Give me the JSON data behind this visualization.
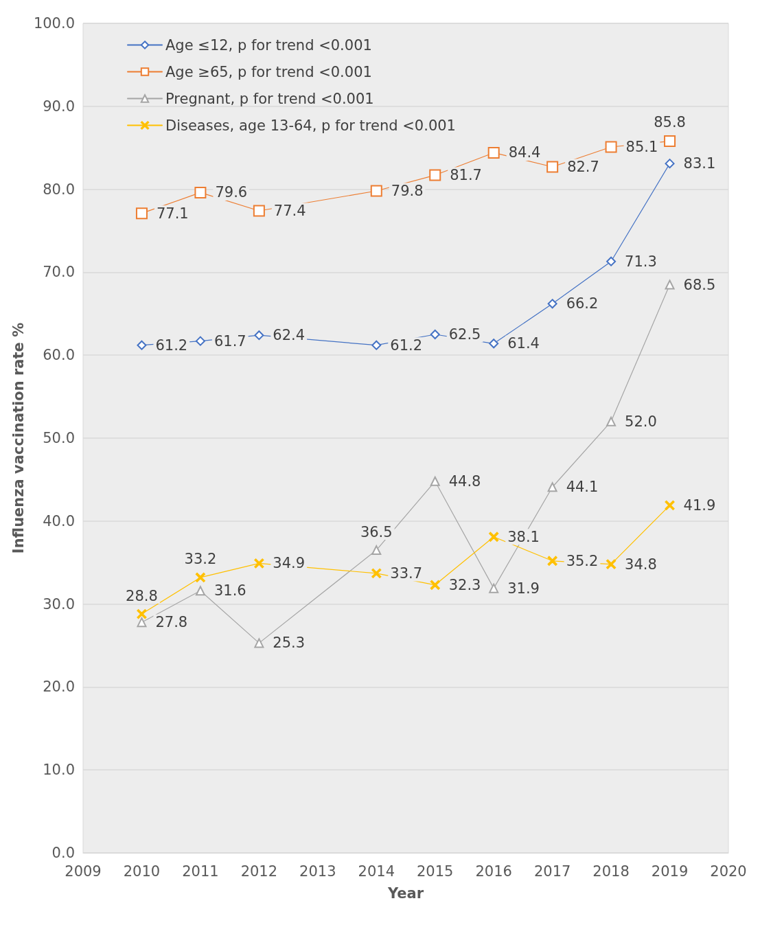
{
  "chart_data": {
    "type": "line",
    "xlabel": "Year",
    "ylabel": "Influenza vaccination rate %",
    "x": [
      2010,
      2011,
      2012,
      2014,
      2015,
      2016,
      2017,
      2018,
      2019
    ],
    "series": [
      {
        "name": "Age ≤12, p for trend <0.001",
        "color": "#4472c4",
        "marker": "diamond",
        "values": [
          61.2,
          61.7,
          62.4,
          61.2,
          62.5,
          61.4,
          66.2,
          71.3,
          83.1
        ],
        "value_labels": [
          "61.2",
          "61.7",
          "62.4",
          "61.2",
          "62.5",
          "61.4",
          "66.2",
          "71.3",
          "83.1"
        ]
      },
      {
        "name": "Age ≥65, p for trend <0.001",
        "color": "#ed7d31",
        "marker": "square",
        "values": [
          77.1,
          79.6,
          77.4,
          79.8,
          81.7,
          84.4,
          82.7,
          85.1,
          85.8
        ],
        "value_labels": [
          "77.1",
          "79.6",
          "77.4",
          "79.8",
          "81.7",
          "84.4",
          "82.7",
          "85.1",
          "85.8"
        ]
      },
      {
        "name": "Pregnant, p for trend <0.001",
        "color": "#a5a5a5",
        "marker": "triangle",
        "values": [
          27.8,
          31.6,
          25.3,
          36.5,
          44.8,
          31.9,
          44.1,
          52.0,
          68.5
        ],
        "value_labels": [
          "27.8",
          "31.6",
          "25.3",
          "36.5",
          "44.8",
          "31.9",
          "44.1",
          "52.0",
          "68.5"
        ]
      },
      {
        "name": "Diseases, age 13-64, p for trend <0.001",
        "color": "#ffc000",
        "marker": "cross",
        "values": [
          28.8,
          33.2,
          34.9,
          33.7,
          32.3,
          38.1,
          35.2,
          34.8,
          41.9
        ],
        "value_labels": [
          "28.8",
          "33.2",
          "34.9",
          "33.7",
          "32.3",
          "38.1",
          "35.2",
          "34.8",
          "41.9"
        ]
      }
    ],
    "xlim": [
      2009,
      2020
    ],
    "xticks": [
      2009,
      2010,
      2011,
      2012,
      2013,
      2014,
      2015,
      2016,
      2017,
      2018,
      2019,
      2020
    ],
    "ylim": [
      0,
      100
    ],
    "yticks": [
      {
        "value": 0,
        "label": "0.0"
      },
      {
        "value": 10,
        "label": "10.0"
      },
      {
        "value": 20,
        "label": "20.0"
      },
      {
        "value": 30,
        "label": "30.0"
      },
      {
        "value": 40,
        "label": "40.0"
      },
      {
        "value": 50,
        "label": "50.0"
      },
      {
        "value": 60,
        "label": "60.0"
      },
      {
        "value": 70,
        "label": "70.0"
      },
      {
        "value": 80,
        "label": "80.0"
      },
      {
        "value": 90,
        "label": "90.0"
      },
      {
        "value": 100,
        "label": "100.0"
      }
    ],
    "grid": "y",
    "legend": "top left",
    "line_style": "solid"
  }
}
